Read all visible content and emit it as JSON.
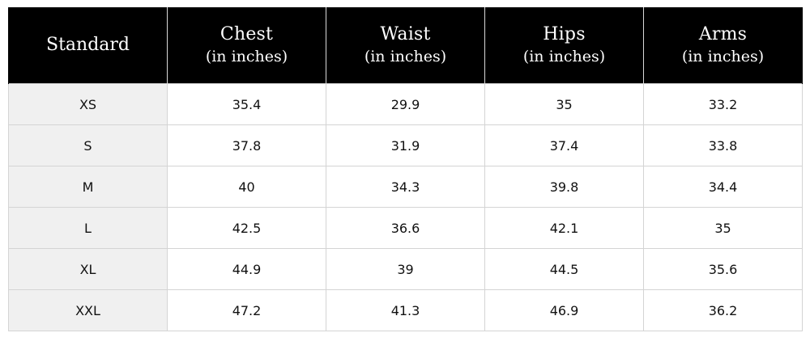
{
  "table": {
    "header": {
      "standard": "Standard",
      "chest": {
        "title": "Chest",
        "unit": "(in inches)"
      },
      "waist": {
        "title": "Waist",
        "unit": "(in inches)"
      },
      "hips": {
        "title": "Hips",
        "unit": "(in inches)"
      },
      "arms": {
        "title": "Arms",
        "unit": "(in inches)"
      }
    },
    "rows": [
      {
        "size": "XS",
        "chest": "35.4",
        "waist": "29.9",
        "hips": "35",
        "arms": "33.2"
      },
      {
        "size": "S",
        "chest": "37.8",
        "waist": "31.9",
        "hips": "37.4",
        "arms": "33.8"
      },
      {
        "size": "M",
        "chest": "40",
        "waist": "34.3",
        "hips": "39.8",
        "arms": "34.4"
      },
      {
        "size": "L",
        "chest": "42.5",
        "waist": "36.6",
        "hips": "42.1",
        "arms": "35"
      },
      {
        "size": "XL",
        "chest": "44.9",
        "waist": "39",
        "hips": "44.5",
        "arms": "35.6"
      },
      {
        "size": "XXL",
        "chest": "47.2",
        "waist": "41.3",
        "hips": "46.9",
        "arms": "36.2"
      }
    ]
  },
  "colors": {
    "header_background": "#000000",
    "header_text": "#ffffff",
    "size_column_background": "#f0f0f0",
    "cell_background": "#ffffff",
    "grid_line": "#d4d4d4"
  }
}
